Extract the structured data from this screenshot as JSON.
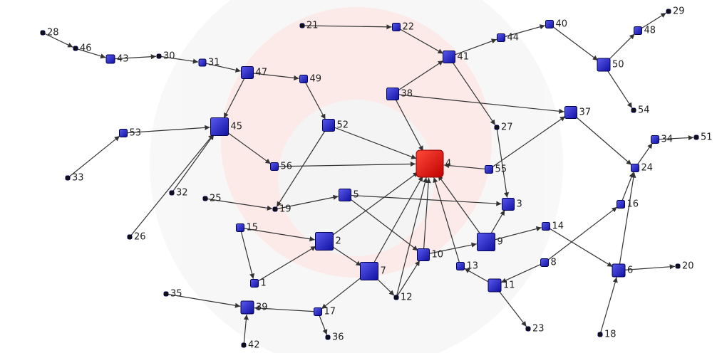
{
  "nodes": [
    {
      "label": "28"
    },
    {
      "label": "46"
    },
    {
      "label": "43"
    },
    {
      "label": "30"
    },
    {
      "label": "31"
    },
    {
      "label": "47"
    },
    {
      "label": "49"
    },
    {
      "label": "21"
    },
    {
      "label": "22"
    },
    {
      "label": "41"
    },
    {
      "label": "44"
    },
    {
      "label": "40"
    },
    {
      "label": "29"
    },
    {
      "label": "48"
    },
    {
      "label": "50"
    },
    {
      "label": "54"
    },
    {
      "label": "38"
    },
    {
      "label": "37"
    },
    {
      "label": "27"
    },
    {
      "label": "53"
    },
    {
      "label": "45"
    },
    {
      "label": "52"
    },
    {
      "label": "4"
    },
    {
      "label": "56"
    },
    {
      "label": "55"
    },
    {
      "label": "34"
    },
    {
      "label": "51"
    },
    {
      "label": "24"
    },
    {
      "label": "33"
    },
    {
      "label": "32"
    },
    {
      "label": "25"
    },
    {
      "label": "19"
    },
    {
      "label": "5"
    },
    {
      "label": "3"
    },
    {
      "label": "16"
    },
    {
      "label": "15"
    },
    {
      "label": "26"
    },
    {
      "label": "2"
    },
    {
      "label": "9"
    },
    {
      "label": "14"
    },
    {
      "label": "10"
    },
    {
      "label": "13"
    },
    {
      "label": "7"
    },
    {
      "label": "8"
    },
    {
      "label": "6"
    },
    {
      "label": "20"
    },
    {
      "label": "1"
    },
    {
      "label": "11"
    },
    {
      "label": "12"
    },
    {
      "label": "35"
    },
    {
      "label": "39"
    },
    {
      "label": "17"
    },
    {
      "label": "23"
    },
    {
      "label": "36"
    },
    {
      "label": "18"
    },
    {
      "label": "42"
    }
  ]
}
